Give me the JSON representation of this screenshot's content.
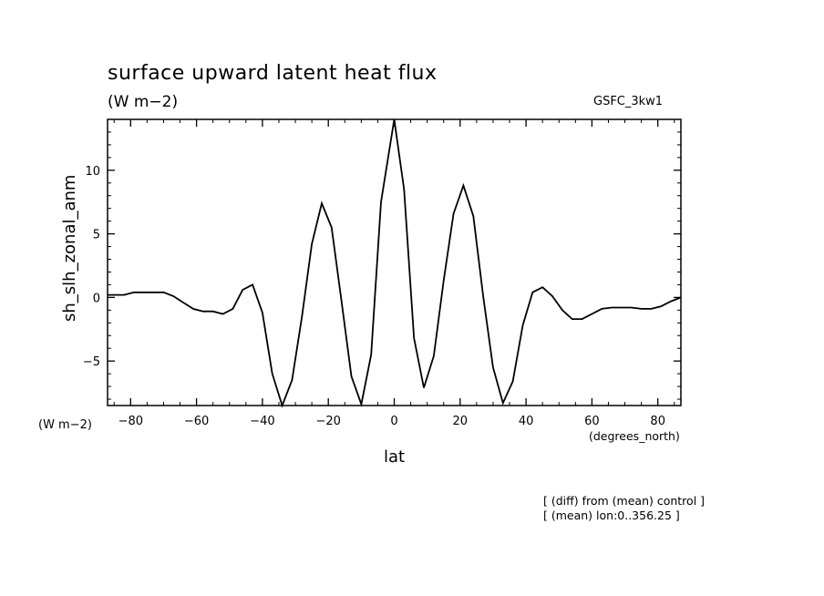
{
  "title": "surface upward latent heat flux",
  "units": "(W m−2)",
  "model": "GSFC_3kw1",
  "notes": [
    "[ (diff) from (mean) control ]",
    "[ (mean) lon:0..356.25 ]"
  ],
  "chart_data": {
    "type": "line",
    "title": "surface upward latent heat flux",
    "xlabel": "lat",
    "xunits": "(degrees_north)",
    "ylabel": "sh_slh_zonal_anm",
    "yunits": "(W m−2)",
    "xlim": [
      -87,
      87
    ],
    "ylim": [
      -8.5,
      14
    ],
    "xticks": [
      -80,
      -60,
      -40,
      -20,
      0,
      20,
      40,
      60,
      80
    ],
    "yticks": [
      -5,
      0,
      5,
      10
    ],
    "grid": false,
    "series": [
      {
        "x": [
          -87,
          -82,
          -79,
          -76,
          -73,
          -70,
          -67,
          -64,
          -61,
          -58,
          -55,
          -52,
          -49,
          -46,
          -43,
          -40,
          -37,
          -34,
          -31,
          -28,
          -25,
          -22,
          -19,
          -16,
          -13,
          -10,
          -7,
          -4,
          0,
          3,
          6,
          9,
          12,
          15,
          18,
          21,
          24,
          27,
          30,
          33,
          36,
          39,
          42,
          45,
          48,
          51,
          54,
          57,
          60,
          63,
          66,
          69,
          72,
          75,
          78,
          81,
          84,
          87
        ],
        "y": [
          0.2,
          0.2,
          0.4,
          0.4,
          0.4,
          0.4,
          0.1,
          -0.4,
          -0.9,
          -1.1,
          -1.1,
          -1.3,
          -0.9,
          0.6,
          1.0,
          -1.2,
          -6.0,
          -8.5,
          -6.5,
          -1.5,
          4.2,
          7.4,
          5.5,
          -0.3,
          -6.2,
          -8.4,
          -4.5,
          7.5,
          14.0,
          8.5,
          -3.2,
          -7.1,
          -4.6,
          1.3,
          6.6,
          8.8,
          6.4,
          0.1,
          -5.5,
          -8.3,
          -6.6,
          -2.2,
          0.4,
          0.8,
          0.1,
          -1.0,
          -1.7,
          -1.7,
          -1.3,
          -0.9,
          -0.8,
          -0.8,
          -0.8,
          -0.9,
          -0.9,
          -0.7,
          -0.3,
          0.0
        ]
      }
    ]
  }
}
